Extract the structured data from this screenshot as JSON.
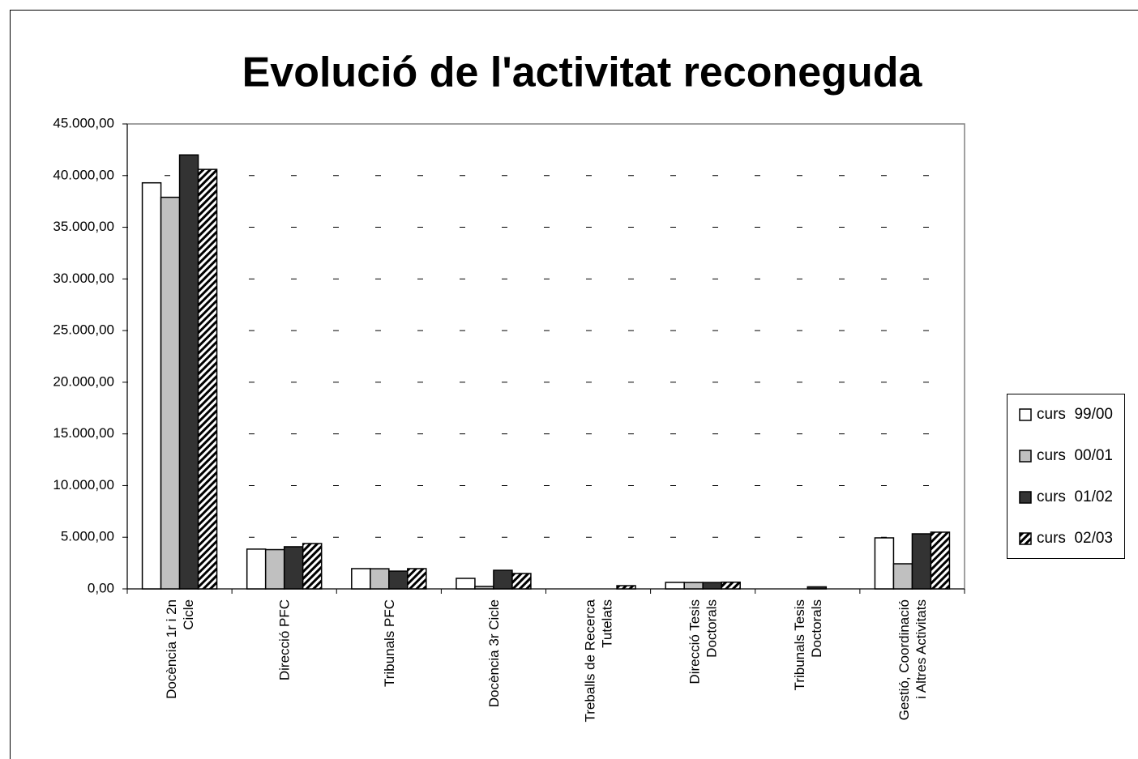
{
  "chart_data": {
    "type": "bar",
    "title": "Evolució de l'activitat reconeguda",
    "categories": [
      "Docència 1r i 2n Cicle",
      "Direcció PFC",
      "Tribunals PFC",
      "Docència 3r Cicle",
      "Treballs de Recerca Tutelats",
      "Direcció Tesis Doctorals",
      "Tribunals Tesis Doctorals",
      "Gestió, Coordinació i Altres Activitats"
    ],
    "series": [
      {
        "name": "curs  99/00",
        "color": "#ffffff",
        "values": [
          39300,
          3850,
          1960,
          1020,
          0,
          630,
          0,
          4940
        ]
      },
      {
        "name": "curs  00/01",
        "color": "#c0c0c0",
        "values": [
          37900,
          3800,
          1950,
          240,
          0,
          620,
          0,
          2430
        ]
      },
      {
        "name": "curs  01/02",
        "color": "#333333",
        "values": [
          42000,
          4080,
          1720,
          1800,
          0,
          620,
          200,
          5330
        ]
      },
      {
        "name": "curs  02/03",
        "color": "#000000",
        "pattern": "hatch",
        "values": [
          40600,
          4390,
          1960,
          1490,
          310,
          650,
          0,
          5490
        ]
      }
    ],
    "ylim": [
      0,
      45000
    ],
    "yticks": [
      {
        "value": 0,
        "label": "0,00"
      },
      {
        "value": 5000,
        "label": "5.000,00"
      },
      {
        "value": 10000,
        "label": "10.000,00"
      },
      {
        "value": 15000,
        "label": "15.000,00"
      },
      {
        "value": 20000,
        "label": "20.000,00"
      },
      {
        "value": 25000,
        "label": "25.000,00"
      },
      {
        "value": 30000,
        "label": "30.000,00"
      },
      {
        "value": 35000,
        "label": "35.000,00"
      },
      {
        "value": 40000,
        "label": "40.000,00"
      },
      {
        "value": 45000,
        "label": "45.000,00"
      }
    ],
    "grid": true,
    "legend": "right"
  }
}
